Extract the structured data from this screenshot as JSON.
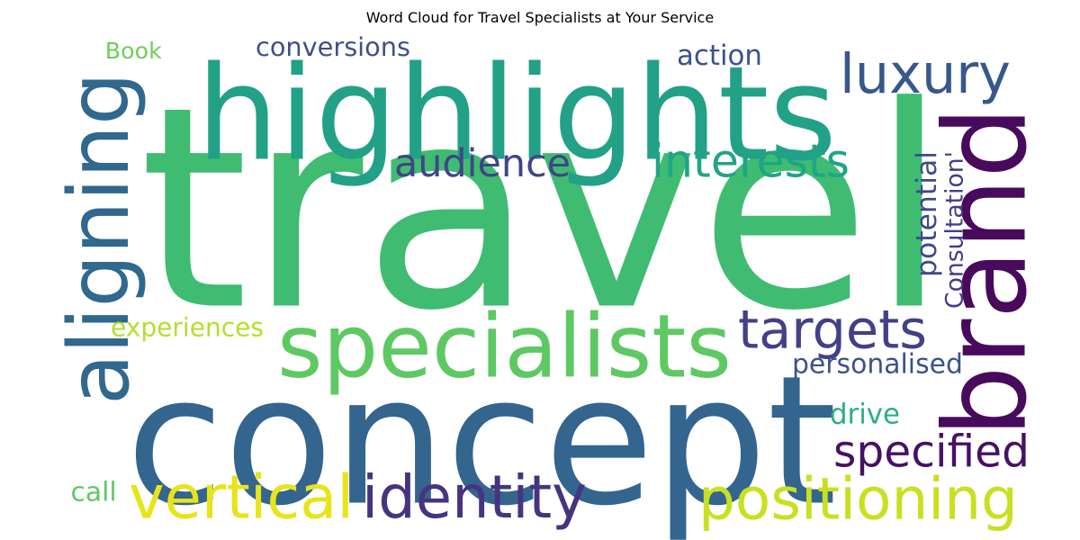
{
  "chart_data": {
    "type": "wordcloud",
    "title": "Word Cloud for Travel Specialists at Your Service",
    "words": [
      {
        "text": "travel",
        "color": "#3fbc72"
      },
      {
        "text": "concept",
        "color": "#33658f"
      },
      {
        "text": "highlights",
        "color": "#22a187"
      },
      {
        "text": "brand",
        "color": "#470a5c"
      },
      {
        "text": "specialists",
        "color": "#5ec962"
      },
      {
        "text": "aligning",
        "color": "#30688e"
      },
      {
        "text": "positioning",
        "color": "#c8e020"
      },
      {
        "text": "luxury",
        "color": "#38588c"
      },
      {
        "text": "identity",
        "color": "#463480"
      },
      {
        "text": "vertical",
        "color": "#e7e419"
      },
      {
        "text": "targets",
        "color": "#424086"
      },
      {
        "text": "specified",
        "color": "#471164"
      },
      {
        "text": "interests",
        "color": "#20a486"
      },
      {
        "text": "audience",
        "color": "#414487"
      },
      {
        "text": "conversions",
        "color": "#414f88"
      },
      {
        "text": "personalised",
        "color": "#3b528b"
      },
      {
        "text": "potential",
        "color": "#3e4a89"
      },
      {
        "text": "Consultation'",
        "color": "#433e85"
      },
      {
        "text": "action",
        "color": "#3b528b"
      },
      {
        "text": "experiences",
        "color": "#b5de2b"
      },
      {
        "text": "drive",
        "color": "#2ab07f"
      },
      {
        "text": "Book",
        "color": "#6ece58"
      },
      {
        "text": "call",
        "color": "#5ec962"
      }
    ]
  }
}
